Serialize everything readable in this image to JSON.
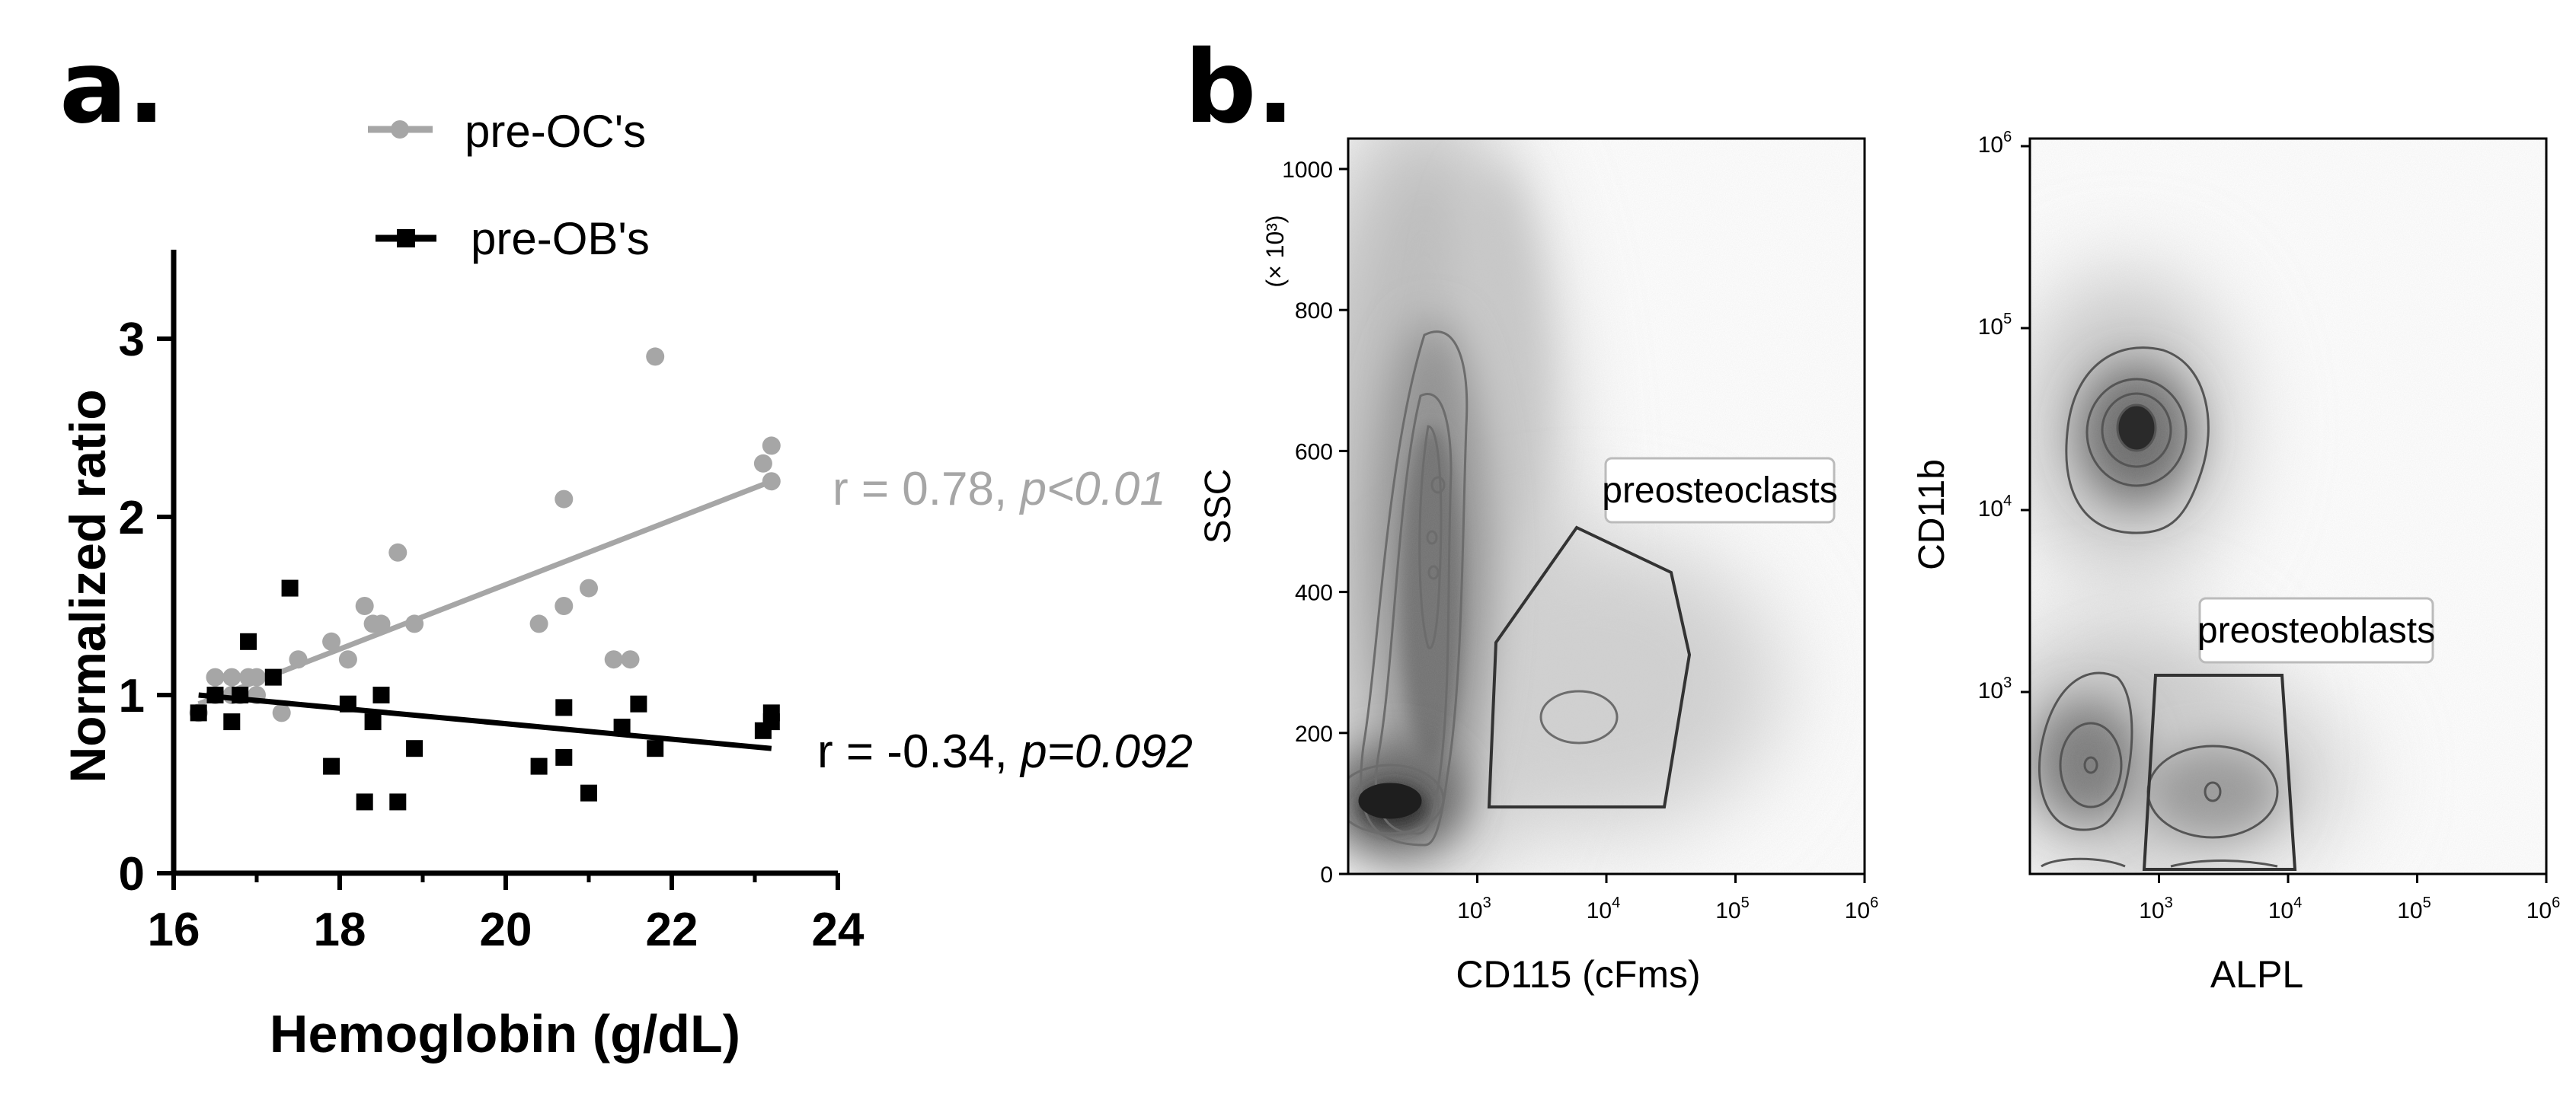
{
  "panel_a": {
    "letter": "a."
  },
  "panel_b": {
    "letter": "b."
  },
  "chart_data": [
    {
      "type": "scatter",
      "title": "",
      "xlabel": "Hemoglobin (g/dL)",
      "ylabel": "Normalized ratio",
      "xlim": [
        16,
        24
      ],
      "ylim": [
        0,
        3.5
      ],
      "x_ticks": [
        "16",
        "18",
        "20",
        "22",
        "24"
      ],
      "y_ticks": [
        "0",
        "1",
        "2",
        "3"
      ],
      "legend_position": "top",
      "series": [
        {
          "name": "pre-OC's",
          "color": "#a6a6a6",
          "marker": "circle",
          "points": [
            [
              16.3,
              0.9
            ],
            [
              16.5,
              1.0
            ],
            [
              16.5,
              1.1
            ],
            [
              16.7,
              1.0
            ],
            [
              16.7,
              1.1
            ],
            [
              16.8,
              1.0
            ],
            [
              16.9,
              1.1
            ],
            [
              17.0,
              1.0
            ],
            [
              17.0,
              1.1
            ],
            [
              17.3,
              0.9
            ],
            [
              17.5,
              1.2
            ],
            [
              17.9,
              1.3
            ],
            [
              18.1,
              1.2
            ],
            [
              18.3,
              1.5
            ],
            [
              18.4,
              1.4
            ],
            [
              18.5,
              1.4
            ],
            [
              18.7,
              1.8
            ],
            [
              18.9,
              1.4
            ],
            [
              20.4,
              1.4
            ],
            [
              20.7,
              1.5
            ],
            [
              20.7,
              2.1
            ],
            [
              21.0,
              1.6
            ],
            [
              21.3,
              1.2
            ],
            [
              21.5,
              1.2
            ],
            [
              21.8,
              2.9
            ],
            [
              23.1,
              2.3
            ],
            [
              23.2,
              2.2
            ],
            [
              23.2,
              2.4
            ]
          ],
          "fit": {
            "x": [
              16.3,
              23.2
            ],
            "y": [
              0.95,
              2.2
            ]
          },
          "annotation": {
            "r": "r = 0.78, ",
            "p": "p<0.01"
          }
        },
        {
          "name": "pre-OB's",
          "color": "#000000",
          "marker": "square",
          "points": [
            [
              16.3,
              0.9
            ],
            [
              16.5,
              1.0
            ],
            [
              16.7,
              0.85
            ],
            [
              16.8,
              1.0
            ],
            [
              16.9,
              1.3
            ],
            [
              17.2,
              1.1
            ],
            [
              17.4,
              1.6
            ],
            [
              17.9,
              0.6
            ],
            [
              18.1,
              0.95
            ],
            [
              18.3,
              0.4
            ],
            [
              18.4,
              0.85
            ],
            [
              18.5,
              1.0
            ],
            [
              18.7,
              0.4
            ],
            [
              18.9,
              0.7
            ],
            [
              20.4,
              0.6
            ],
            [
              20.7,
              0.65
            ],
            [
              20.7,
              0.93
            ],
            [
              21.0,
              0.45
            ],
            [
              21.4,
              0.82
            ],
            [
              21.6,
              0.95
            ],
            [
              21.8,
              0.7
            ],
            [
              23.1,
              0.8
            ],
            [
              23.2,
              0.9
            ],
            [
              23.2,
              0.85
            ]
          ],
          "fit": {
            "x": [
              16.3,
              23.2
            ],
            "y": [
              1.0,
              0.7
            ]
          },
          "annotation": {
            "r": "r = -0.34, ",
            "p": "p=0.092"
          }
        }
      ]
    },
    {
      "type": "heatmap",
      "title": "",
      "xlabel": "CD115 (cFms)",
      "ylabel": "SSC",
      "y_unit_label": "(× 10³)",
      "xlim": [
        100,
        1000000
      ],
      "x_scale": "log",
      "ylim": [
        0,
        1000
      ],
      "x_ticks": [
        {
          "value": 1000,
          "base": "10",
          "exp": "3"
        },
        {
          "value": 10000,
          "base": "10",
          "exp": "4"
        },
        {
          "value": 100000,
          "base": "10",
          "exp": "5"
        },
        {
          "value": 1000000,
          "base": "10",
          "exp": "6"
        }
      ],
      "y_ticks": [
        {
          "value": 0,
          "label": "0"
        },
        {
          "value": 200,
          "label": "200"
        },
        {
          "value": 400,
          "label": "400"
        },
        {
          "value": 600,
          "label": "600"
        },
        {
          "value": 800,
          "label": "800"
        },
        {
          "value": 1000,
          "label": "1000"
        }
      ],
      "gate_label": "preosteoclasts"
    },
    {
      "type": "heatmap",
      "title": "",
      "xlabel": "ALPL",
      "ylabel": "CD11b",
      "x_scale": "log",
      "y_scale": "log",
      "xlim": [
        100,
        1000000
      ],
      "ylim": [
        100,
        1000000
      ],
      "x_ticks": [
        {
          "value": 1000,
          "base": "10",
          "exp": "3"
        },
        {
          "value": 10000,
          "base": "10",
          "exp": "4"
        },
        {
          "value": 100000,
          "base": "10",
          "exp": "5"
        },
        {
          "value": 1000000,
          "base": "10",
          "exp": "6"
        }
      ],
      "y_ticks": [
        {
          "value": 1000,
          "base": "10",
          "exp": "3"
        },
        {
          "value": 10000,
          "base": "10",
          "exp": "4"
        },
        {
          "value": 100000,
          "base": "10",
          "exp": "5"
        },
        {
          "value": 1000000,
          "base": "10",
          "exp": "6"
        }
      ],
      "gate_label": "preosteoblasts"
    }
  ]
}
